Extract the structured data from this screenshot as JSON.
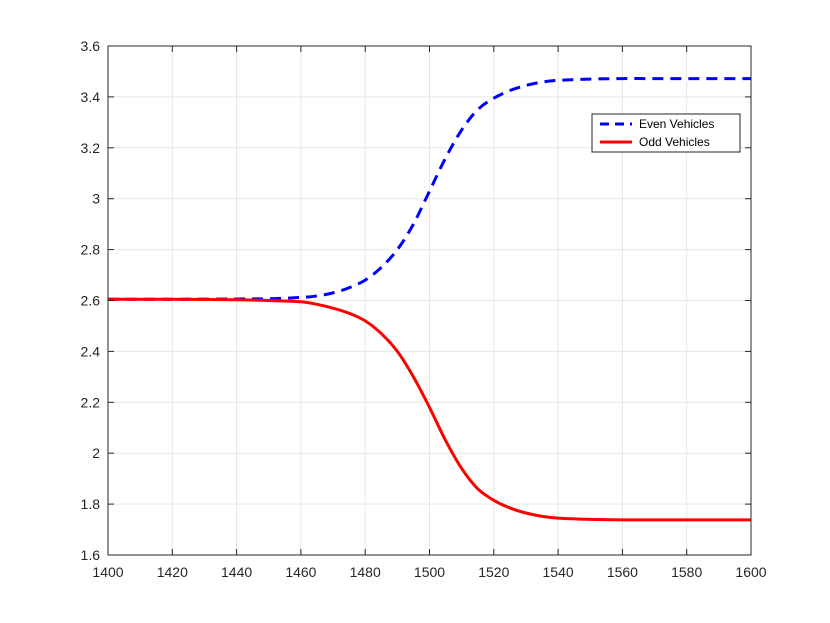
{
  "chart_data": {
    "type": "line",
    "title": "",
    "xlabel": "",
    "ylabel": "",
    "xlim": [
      1400,
      1600
    ],
    "ylim": [
      1.6,
      3.6
    ],
    "xticks": [
      1400,
      1420,
      1440,
      1460,
      1480,
      1500,
      1520,
      1540,
      1560,
      1580,
      1600
    ],
    "yticks": [
      1.6,
      1.8,
      2,
      2.2,
      2.4,
      2.6,
      2.8,
      3,
      3.2,
      3.4,
      3.6
    ],
    "grid": true,
    "legend_position": "top-right",
    "series": [
      {
        "name": "Even Vehicles",
        "color": "#0000ff",
        "style": "dashed",
        "x": [
          1400,
          1420,
          1440,
          1450,
          1460,
          1465,
          1470,
          1475,
          1480,
          1485,
          1490,
          1495,
          1500,
          1505,
          1510,
          1515,
          1520,
          1525,
          1530,
          1535,
          1540,
          1550,
          1560,
          1570,
          1580,
          1590,
          1600
        ],
        "y": [
          2.605,
          2.605,
          2.606,
          2.607,
          2.612,
          2.618,
          2.63,
          2.65,
          2.68,
          2.73,
          2.8,
          2.9,
          3.03,
          3.16,
          3.27,
          3.35,
          3.395,
          3.425,
          3.445,
          3.458,
          3.465,
          3.47,
          3.472,
          3.472,
          3.472,
          3.472,
          3.472
        ]
      },
      {
        "name": "Odd Vehicles",
        "color": "#ff0000",
        "style": "solid",
        "x": [
          1400,
          1420,
          1440,
          1450,
          1460,
          1465,
          1470,
          1475,
          1480,
          1485,
          1490,
          1495,
          1500,
          1505,
          1510,
          1515,
          1520,
          1525,
          1530,
          1535,
          1540,
          1550,
          1560,
          1570,
          1580,
          1590,
          1600
        ],
        "y": [
          2.605,
          2.605,
          2.603,
          2.6,
          2.595,
          2.585,
          2.57,
          2.55,
          2.52,
          2.47,
          2.4,
          2.3,
          2.18,
          2.05,
          1.94,
          1.86,
          1.815,
          1.785,
          1.765,
          1.752,
          1.745,
          1.74,
          1.738,
          1.738,
          1.738,
          1.738,
          1.738
        ]
      }
    ]
  }
}
